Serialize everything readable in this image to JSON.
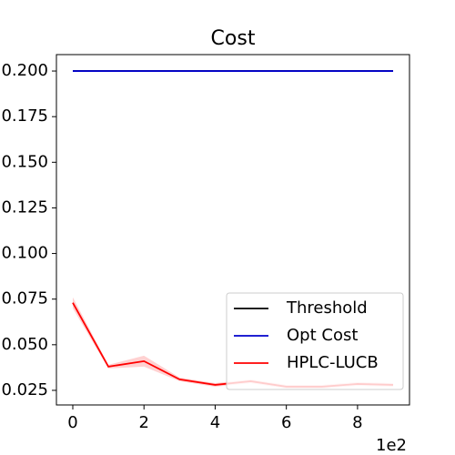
{
  "chart_data": {
    "type": "line",
    "title": "Cost",
    "x": [
      0,
      1,
      2,
      3,
      4,
      5,
      6,
      7,
      8,
      9
    ],
    "x_offset_label": "1e2",
    "series": [
      {
        "name": "Threshold",
        "color": "#000000",
        "values": [
          0.2,
          0.2,
          0.2,
          0.2,
          0.2,
          0.2,
          0.2,
          0.2,
          0.2,
          0.2
        ]
      },
      {
        "name": "Opt Cost",
        "color": "#0000cc",
        "values": [
          0.2,
          0.2,
          0.2,
          0.2,
          0.2,
          0.2,
          0.2,
          0.2,
          0.2,
          0.2
        ]
      },
      {
        "name": "HPLC-LUCB",
        "color": "#ff0000",
        "values": [
          0.073,
          0.038,
          0.041,
          0.031,
          0.028,
          0.03,
          0.027,
          0.027,
          0.0285,
          0.028
        ],
        "lower": [
          0.07,
          0.037,
          0.038,
          0.03,
          0.027,
          0.029,
          0.026,
          0.026,
          0.0275,
          0.027
        ],
        "upper": [
          0.076,
          0.039,
          0.044,
          0.032,
          0.029,
          0.031,
          0.028,
          0.028,
          0.0295,
          0.029
        ]
      }
    ],
    "xlim": [
      -0.46,
      9.46
    ],
    "xticks": [
      0,
      2,
      4,
      6,
      8
    ],
    "ylim": [
      0.017,
      0.209
    ],
    "yticks": [
      {
        "value": 0.025,
        "label": "0.025"
      },
      {
        "value": 0.05,
        "label": "0.050"
      },
      {
        "value": 0.075,
        "label": "0.075"
      },
      {
        "value": 0.1,
        "label": "0.100"
      },
      {
        "value": 0.125,
        "label": "0.125"
      },
      {
        "value": 0.15,
        "label": "0.150"
      },
      {
        "value": 0.175,
        "label": "0.175"
      },
      {
        "value": 0.2,
        "label": "0.200"
      }
    ],
    "legend": "lower right"
  }
}
